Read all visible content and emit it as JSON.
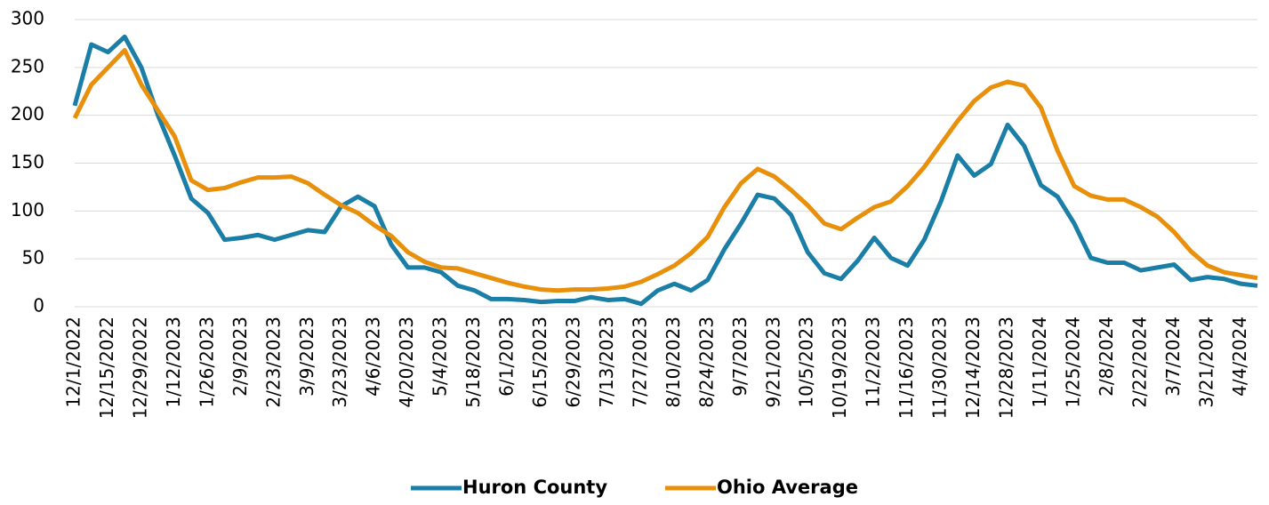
{
  "chart_data": {
    "type": "line",
    "categories": [
      "12/1/2022",
      null,
      "12/15/2022",
      null,
      "12/29/2022",
      null,
      "1/12/2023",
      null,
      "1/26/2023",
      null,
      "2/9/2023",
      null,
      "2/23/2023",
      null,
      "3/9/2023",
      null,
      "3/23/2023",
      null,
      "4/6/2023",
      null,
      "4/20/2023",
      null,
      "5/4/2023",
      null,
      "5/18/2023",
      null,
      "6/1/2023",
      null,
      "6/15/2023",
      null,
      "6/29/2023",
      null,
      "7/13/2023",
      null,
      "7/27/2023",
      null,
      "8/10/2023",
      null,
      "8/24/2023",
      null,
      "9/7/2023",
      null,
      "9/21/2023",
      null,
      "10/5/2023",
      null,
      "10/19/2023",
      null,
      "11/2/2023",
      null,
      "11/16/2023",
      null,
      "11/30/2023",
      null,
      "12/14/2023",
      null,
      "12/28/2023",
      null,
      "1/11/2024",
      null,
      "1/25/2024",
      null,
      "2/8/2024",
      null,
      "2/22/2024",
      null,
      "3/7/2024",
      null,
      "3/21/2024",
      null,
      "4/4/2024",
      null
    ],
    "series": [
      {
        "name": "Huron County",
        "color": "#1a7ea6",
        "values": [
          210,
          274,
          266,
          282,
          250,
          200,
          158,
          113,
          98,
          70,
          72,
          75,
          70,
          75,
          80,
          78,
          105,
          115,
          105,
          65,
          41,
          41,
          36,
          22,
          17,
          8,
          8,
          7,
          5,
          6,
          6,
          10,
          7,
          8,
          3,
          17,
          24,
          17,
          28,
          60,
          87,
          117,
          113,
          96,
          57,
          35,
          29,
          48,
          72,
          51,
          43,
          70,
          110,
          158,
          137,
          149,
          190,
          168,
          127,
          115,
          87,
          51,
          46,
          46,
          38,
          41,
          44,
          28,
          31,
          29,
          24,
          22
        ]
      },
      {
        "name": "Ohio Average",
        "color": "#e8900c",
        "values": [
          197,
          232,
          250,
          268,
          232,
          205,
          178,
          132,
          122,
          124,
          130,
          135,
          135,
          136,
          129,
          117,
          106,
          98,
          85,
          74,
          57,
          47,
          41,
          40,
          35,
          30,
          25,
          21,
          18,
          17,
          18,
          18,
          19,
          21,
          26,
          34,
          43,
          56,
          73,
          104,
          129,
          144,
          136,
          122,
          106,
          87,
          81,
          93,
          104,
          110,
          126,
          146,
          170,
          194,
          215,
          229,
          235,
          231,
          208,
          163,
          126,
          116,
          112,
          112,
          104,
          94,
          78,
          58,
          43,
          36,
          33,
          30
        ]
      }
    ],
    "ylim": [
      0,
      300
    ],
    "yticks": [
      0,
      50,
      100,
      150,
      200,
      250,
      300
    ],
    "grid": true,
    "legend": "bottom"
  }
}
